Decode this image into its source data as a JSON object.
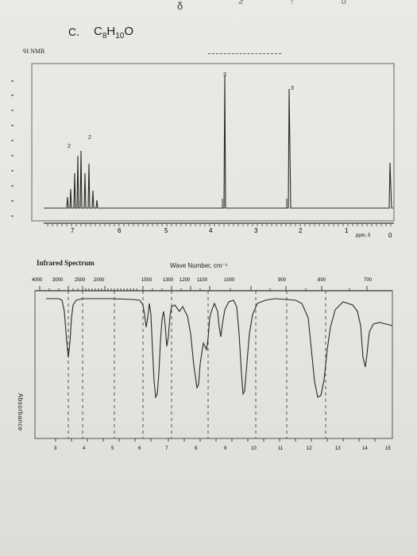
{
  "header": {
    "delta_symbol": "δ",
    "top_marks": "≥ ↑ ʊ",
    "problem_label": "C.",
    "formula": {
      "base": "C",
      "n1": "8",
      "h": "H",
      "n2": "10",
      "o": "O"
    }
  },
  "nmr": {
    "label": "¹H NMR",
    "x_ticks": [
      "7",
      "6",
      "5",
      "4",
      "3",
      "2",
      "1",
      "0"
    ],
    "axis_unit": "ppm, δ",
    "peak_labels": [
      "2",
      "2",
      "3",
      "3"
    ],
    "chart_data": {
      "type": "line",
      "xlabel": "ppm, δ",
      "xlim": [
        7.9,
        0
      ],
      "peaks": [
        {
          "ppm": 7.25,
          "integration": "2",
          "height": 0.48
        },
        {
          "ppm": 7.05,
          "integration": "2",
          "height": 0.55
        },
        {
          "ppm": 4.4,
          "integration": "3",
          "height": 0.93
        },
        {
          "ppm": 3.4,
          "integration": "3",
          "height": 0.86
        },
        {
          "ppm": 0.0,
          "integration": "",
          "height": 0.3
        }
      ]
    }
  },
  "ir": {
    "title": "Infrared Spectrum",
    "wave_title": "Wave Number, cm⁻¹",
    "wavenumbers": [
      "4000",
      "3000",
      "2500",
      "2000",
      "1500",
      "1300",
      "1200",
      "1100",
      "1000",
      "900",
      "800",
      "700"
    ],
    "microns": [
      "3",
      "4",
      "5",
      "6",
      "7",
      "8",
      "9",
      "10",
      "11",
      "12",
      "13",
      "14",
      "15"
    ],
    "ylabel": "Absorbance",
    "chart_data": {
      "type": "line",
      "ylabel": "Absorbance",
      "xlabel": "Wave Number, cm⁻¹",
      "bands": [
        {
          "wavenumber": 3050,
          "strength": "medium"
        },
        {
          "wavenumber": 1610,
          "strength": "medium"
        },
        {
          "wavenumber": 1510,
          "strength": "strong"
        },
        {
          "wavenumber": 1460,
          "strength": "medium"
        },
        {
          "wavenumber": 1250,
          "strength": "strong"
        },
        {
          "wavenumber": 1040,
          "strength": "strong"
        },
        {
          "wavenumber": 820,
          "strength": "strong"
        },
        {
          "wavenumber": 700,
          "strength": "medium"
        }
      ]
    }
  }
}
